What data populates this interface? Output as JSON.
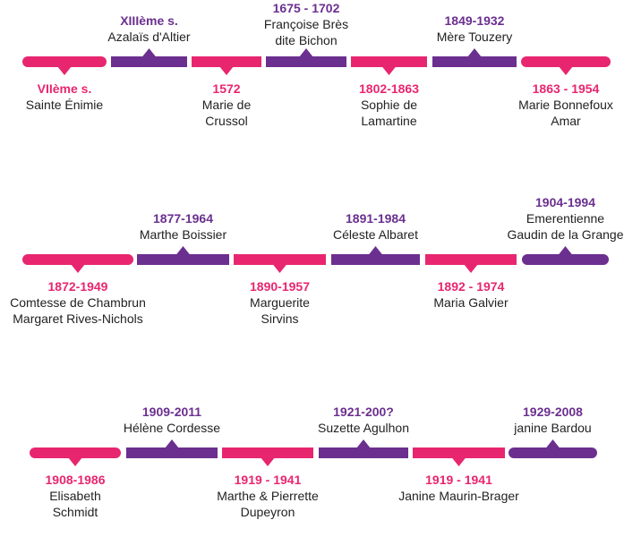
{
  "colors": {
    "pink": "#e8266f",
    "purple": "#6b2f8f",
    "text": "#222222"
  },
  "timelines": [
    {
      "row": 1,
      "segments": [
        {
          "color": "pink",
          "side": "below",
          "date": "VIIème s.",
          "name": [
            "Sainte Énimie"
          ]
        },
        {
          "color": "purple",
          "side": "above",
          "date": "XIIIème s.",
          "name": [
            "Azalaïs d'Altier"
          ]
        },
        {
          "color": "pink",
          "side": "below",
          "date": "1572",
          "name": [
            "Marie de",
            "Crussol"
          ]
        },
        {
          "color": "purple",
          "side": "above",
          "date": "1675 - 1702",
          "name": [
            "Françoise Brès",
            "dite Bichon"
          ]
        },
        {
          "color": "pink",
          "side": "below",
          "date": "1802-1863",
          "name": [
            "Sophie de",
            "Lamartine"
          ]
        },
        {
          "color": "purple",
          "side": "above",
          "date": "1849-1932",
          "name": [
            "Mère Touzery"
          ]
        },
        {
          "color": "pink",
          "side": "below",
          "date": "1863 - 1954",
          "name": [
            "Marie Bonnefoux",
            "Amar"
          ]
        }
      ]
    },
    {
      "row": 2,
      "segments": [
        {
          "color": "pink",
          "side": "below",
          "date": "1872-1949",
          "name": [
            "Comtesse de Chambrun",
            "Margaret Rives-Nichols"
          ]
        },
        {
          "color": "purple",
          "side": "above",
          "date": "1877-1964",
          "name": [
            "Marthe Boissier"
          ]
        },
        {
          "color": "pink",
          "side": "below",
          "date": "1890-1957",
          "name": [
            "Marguerite",
            "Sirvins"
          ]
        },
        {
          "color": "purple",
          "side": "above",
          "date": "1891-1984",
          "name": [
            "Céleste Albaret"
          ]
        },
        {
          "color": "pink",
          "side": "below",
          "date": "1892 - 1974",
          "name": [
            "Maria Galvier"
          ]
        },
        {
          "color": "purple",
          "side": "above",
          "date": "1904-1994",
          "name": [
            "Emerentienne",
            "Gaudin de la Grange"
          ]
        }
      ]
    },
    {
      "row": 3,
      "segments": [
        {
          "color": "pink",
          "side": "below",
          "date": "1908-1986",
          "name": [
            "Elisabeth",
            "Schmidt"
          ]
        },
        {
          "color": "purple",
          "side": "above",
          "date": "1909-2011",
          "name": [
            "Hélène Cordesse"
          ]
        },
        {
          "color": "pink",
          "side": "below",
          "date": "1919 - 1941",
          "name": [
            "Marthe & Pierrette",
            "Dupeyron"
          ]
        },
        {
          "color": "purple",
          "side": "above",
          "date": "1921-200?",
          "name": [
            "Suzette Agulhon"
          ]
        },
        {
          "color": "pink",
          "side": "below",
          "date": "1919 - 1941",
          "name": [
            "Janine Maurin-Brager"
          ]
        },
        {
          "color": "purple",
          "side": "above",
          "date": "1929-2008",
          "name": [
            "janine Bardou"
          ]
        }
      ]
    }
  ]
}
